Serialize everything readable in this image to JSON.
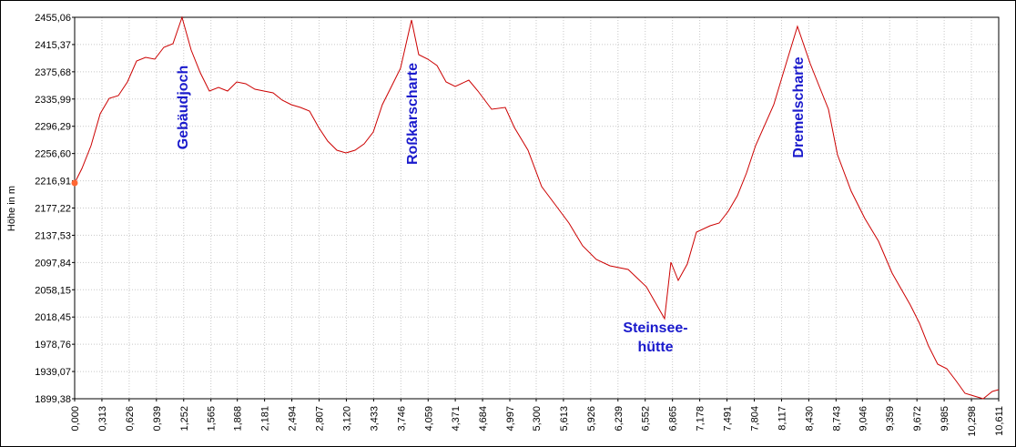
{
  "chart_data": {
    "type": "line",
    "ylabel": "Höhe  in  m",
    "color": "#cc0000",
    "grid": true,
    "annotations": [
      [
        "Gebäudjoch"
      ],
      [
        "Roßkarscharte"
      ],
      [
        "Steinsee-",
        "hütte"
      ],
      [
        "Dremelscharte"
      ]
    ],
    "xlim": [
      0,
      10.611
    ],
    "ylim": [
      1899.38,
      2455.06
    ],
    "xticks": [
      {
        "value": 0,
        "label": "0,000"
      },
      {
        "value": 0.313,
        "label": "0,313"
      },
      {
        "value": 0.626,
        "label": "0,626"
      },
      {
        "value": 0.939,
        "label": "0,939"
      },
      {
        "value": 1.252,
        "label": "1,252"
      },
      {
        "value": 1.565,
        "label": "1,565"
      },
      {
        "value": 1.868,
        "label": "1,868"
      },
      {
        "value": 2.181,
        "label": "2,181"
      },
      {
        "value": 2.494,
        "label": "2,494"
      },
      {
        "value": 2.807,
        "label": "2,807"
      },
      {
        "value": 3.12,
        "label": "3,120"
      },
      {
        "value": 3.433,
        "label": "3,433"
      },
      {
        "value": 3.746,
        "label": "3,746"
      },
      {
        "value": 4.059,
        "label": "4,059"
      },
      {
        "value": 4.371,
        "label": "4,371"
      },
      {
        "value": 4.684,
        "label": "4,684"
      },
      {
        "value": 4.997,
        "label": "4,997"
      },
      {
        "value": 5.3,
        "label": "5,300"
      },
      {
        "value": 5.613,
        "label": "5,613"
      },
      {
        "value": 5.926,
        "label": "5,926"
      },
      {
        "value": 6.239,
        "label": "6,239"
      },
      {
        "value": 6.552,
        "label": "6,552"
      },
      {
        "value": 6.865,
        "label": "6,865"
      },
      {
        "value": 7.178,
        "label": "7,178"
      },
      {
        "value": 7.491,
        "label": "7,491"
      },
      {
        "value": 7.804,
        "label": "7,804"
      },
      {
        "value": 8.117,
        "label": "8,117"
      },
      {
        "value": 8.43,
        "label": "8,430"
      },
      {
        "value": 8.743,
        "label": "8,743"
      },
      {
        "value": 9.046,
        "label": "9,046"
      },
      {
        "value": 9.359,
        "label": "9,359"
      },
      {
        "value": 9.672,
        "label": "9,672"
      },
      {
        "value": 9.985,
        "label": "9,985"
      },
      {
        "value": 10.298,
        "label": "10,298"
      },
      {
        "value": 10.611,
        "label": "10,611"
      }
    ],
    "yticks": [
      {
        "value": 2455.06,
        "label": "2455,06"
      },
      {
        "value": 2415.37,
        "label": "2415,37"
      },
      {
        "value": 2375.68,
        "label": "2375,68"
      },
      {
        "value": 2335.99,
        "label": "2335,99"
      },
      {
        "value": 2296.29,
        "label": "2296,29"
      },
      {
        "value": 2256.6,
        "label": "2256,60"
      },
      {
        "value": 2216.91,
        "label": "2216,91"
      },
      {
        "value": 2177.22,
        "label": "2177,22"
      },
      {
        "value": 2137.53,
        "label": "2137,53"
      },
      {
        "value": 2097.84,
        "label": "2097,84"
      },
      {
        "value": 2058.15,
        "label": "2058,15"
      },
      {
        "value": 2018.45,
        "label": "2018,45"
      },
      {
        "value": 1978.76,
        "label": "1978,76"
      },
      {
        "value": 1939.07,
        "label": "1939,07"
      },
      {
        "value": 1899.38,
        "label": "1899,38"
      }
    ],
    "x": [
      0,
      0.084,
      0.188,
      0.293,
      0.397,
      0.502,
      0.606,
      0.711,
      0.815,
      0.92,
      1.024,
      1.129,
      1.233,
      1.338,
      1.443,
      1.547,
      1.652,
      1.756,
      1.861,
      1.965,
      2.07,
      2.174,
      2.279,
      2.383,
      2.488,
      2.593,
      2.697,
      2.802,
      2.906,
      3.011,
      3.115,
      3.22,
      3.324,
      3.429,
      3.533,
      3.638,
      3.742,
      3.868,
      3.951,
      4.056,
      4.161,
      4.265,
      4.37,
      4.526,
      4.631,
      4.788,
      4.945,
      5.049,
      5.206,
      5.363,
      5.52,
      5.676,
      5.833,
      5.99,
      6.147,
      6.356,
      6.565,
      6.774,
      6.847,
      6.931,
      7.035,
      7.14,
      7.297,
      7.401,
      7.506,
      7.61,
      7.715,
      7.819,
      8.028,
      8.185,
      8.3,
      8.447,
      8.551,
      8.656,
      8.76,
      8.917,
      9.074,
      9.231,
      9.387,
      9.596,
      9.701,
      9.805,
      9.91,
      10.015,
      10.119,
      10.224,
      10.328,
      10.433,
      10.537,
      10.611
    ],
    "values": [
      2213.69,
      2234.91,
      2268.06,
      2314.48,
      2337.03,
      2341.01,
      2360.9,
      2391.4,
      2396.71,
      2394.05,
      2411.3,
      2416.6,
      2455.06,
      2407.32,
      2374.16,
      2347.64,
      2352.94,
      2347.64,
      2360.9,
      2358.25,
      2350.29,
      2347.64,
      2344.99,
      2334.38,
      2327.74,
      2323.77,
      2318.46,
      2294.59,
      2274.7,
      2261.43,
      2257.46,
      2261.43,
      2270.72,
      2287.96,
      2327.74,
      2354.27,
      2380.79,
      2451.08,
      2400.69,
      2394.05,
      2384.77,
      2360.9,
      2354.27,
      2363.55,
      2347.64,
      2321.11,
      2323.77,
      2294.59,
      2261.43,
      2208.39,
      2181.86,
      2155.34,
      2122.18,
      2102.29,
      2093.01,
      2087.7,
      2062.5,
      2016.09,
      2098.31,
      2071.79,
      2095.66,
      2142.08,
      2151.36,
      2155.34,
      2172.58,
      2195.12,
      2228.28,
      2268.06,
      2327.74,
      2394.05,
      2441.8,
      2387.42,
      2354.27,
      2321.11,
      2254.8,
      2201.76,
      2161.97,
      2128.81,
      2082.4,
      2035.98,
      2009.46,
      1976.3,
      1949.78,
      1943.15,
      1925.91,
      1907.34,
      1903.36,
      1899.38,
      1909.99,
      1912.64
    ]
  }
}
